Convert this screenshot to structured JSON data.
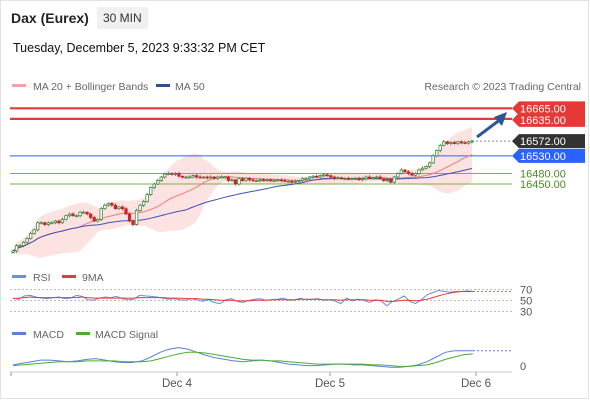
{
  "header": {
    "title": "Dax (Eurex)",
    "timeframe": "30 MIN",
    "timestamp": "Tuesday, December 5, 2023 9:33:32 PM CET"
  },
  "legend": {
    "ma20": "MA 20 + Bollinger Bands",
    "ma50": "MA 50",
    "credit": "Research © 2023 Trading Central",
    "rsi": "RSI",
    "rsi_ma": "9MA",
    "macd": "MACD",
    "macd_signal": "MACD Signal"
  },
  "colors": {
    "up": "#2e7d32",
    "down": "#c62828",
    "resistance": "#e53935",
    "pivot": "#2962ff",
    "support": "#7cb342",
    "ma20": "#f07b7b",
    "ma50": "#3f51b5",
    "band_fill": "#fde2e2",
    "rsi": "#6a8fdc",
    "rsi_ma": "#e53935",
    "macd": "#5b7fe0",
    "macd_signal": "#4caf28",
    "last_price_bg": "#333333",
    "arrow": "#2f5597"
  },
  "chart_data": [
    {
      "type": "candlestick",
      "title": "Dax (Eurex)",
      "interval": "30 MIN",
      "x_ticks": [
        "Dec 4",
        "Dec 5",
        "Dec 6"
      ],
      "ylim": [
        16240,
        16700
      ],
      "levels": [
        {
          "label": "16665.00",
          "value": 16665,
          "kind": "resistance"
        },
        {
          "label": "16635.00",
          "value": 16635,
          "kind": "resistance"
        },
        {
          "label": "16572.00",
          "value": 16572,
          "kind": "last"
        },
        {
          "label": "16530.00",
          "value": 16530,
          "kind": "pivot"
        },
        {
          "label": "16480.00",
          "value": 16480,
          "kind": "support"
        },
        {
          "label": "16450.00",
          "value": 16450,
          "kind": "support"
        }
      ],
      "close": [
        16260,
        16275,
        16275,
        16285,
        16295,
        16310,
        16320,
        16340,
        16340,
        16335,
        16340,
        16340,
        16345,
        16340,
        16350,
        16360,
        16365,
        16360,
        16360,
        16370,
        16370,
        16365,
        16355,
        16345,
        16350,
        16380,
        16390,
        16395,
        16390,
        16380,
        16385,
        16380,
        16365,
        16345,
        16335,
        16375,
        16390,
        16400,
        16420,
        16440,
        16450,
        16460,
        16470,
        16478,
        16480,
        16478,
        16480,
        16472,
        16470,
        16470,
        16470,
        16474,
        16470,
        16468,
        16470,
        16468,
        16470,
        16466,
        16470,
        16470,
        16470,
        16460,
        16462,
        16450,
        16465,
        16460,
        16466,
        16462,
        16460,
        16460,
        16462,
        16460,
        16462,
        16460,
        16460,
        16462,
        16460,
        16458,
        16458,
        16455,
        16458,
        16460,
        16465,
        16465,
        16470,
        16472,
        16470,
        16474,
        16476,
        16474,
        16470,
        16466,
        16468,
        16466,
        16466,
        16464,
        16466,
        16466,
        16462,
        16465,
        16470,
        16466,
        16468,
        16470,
        16465,
        16460,
        16462,
        16455,
        16470,
        16480,
        16490,
        16485,
        16480,
        16475,
        16480,
        16490,
        16495,
        16500,
        16510,
        16530,
        16545,
        16560,
        16570,
        16565,
        16568,
        16565,
        16570,
        16568,
        16566,
        16570,
        16572
      ]
    },
    {
      "type": "line",
      "title": "RSI",
      "y_ticks": [
        70,
        50,
        30
      ],
      "series": [
        {
          "name": "RSI",
          "values": [
            58,
            56,
            62,
            63,
            60,
            58,
            57,
            59,
            60,
            57,
            58,
            63,
            61,
            55,
            54,
            58,
            60,
            59,
            61,
            57,
            55,
            56,
            63,
            62,
            61,
            60,
            58,
            56,
            57,
            55,
            54,
            57,
            55,
            52,
            55,
            50,
            48,
            55,
            57,
            52,
            50,
            54,
            56,
            57,
            54,
            55,
            56,
            58,
            54,
            55,
            58,
            55,
            56,
            57,
            54,
            55,
            53,
            48,
            58,
            53,
            56,
            54,
            50,
            55,
            53,
            44,
            52,
            56,
            62,
            52,
            48,
            55,
            64,
            68,
            72,
            70,
            69,
            70,
            70,
            71,
            70
          ]
        },
        {
          "name": "9MA",
          "values": [
            57,
            58,
            59,
            60,
            59,
            59,
            59,
            59,
            59,
            59,
            59,
            59,
            60,
            59,
            58,
            58,
            58,
            58,
            58,
            58,
            58,
            58,
            59,
            59,
            59,
            59,
            59,
            58,
            58,
            58,
            57,
            57,
            57,
            56,
            56,
            55,
            54,
            54,
            54,
            53,
            53,
            53,
            54,
            54,
            54,
            55,
            55,
            55,
            55,
            55,
            56,
            56,
            56,
            56,
            55,
            55,
            55,
            54,
            55,
            55,
            55,
            55,
            54,
            54,
            54,
            52,
            52,
            53,
            54,
            54,
            53,
            54,
            56,
            59,
            62,
            65,
            67,
            69,
            70,
            70,
            70
          ]
        }
      ]
    },
    {
      "type": "line",
      "title": "MACD",
      "y_ticks": [
        0
      ],
      "series": [
        {
          "name": "MACD",
          "values": [
            4,
            6,
            8,
            10,
            10,
            9,
            8,
            9,
            11,
            12,
            10,
            8,
            7,
            7,
            9,
            14,
            20,
            24,
            26,
            24,
            20,
            16,
            13,
            11,
            9,
            8,
            9,
            10,
            9,
            7,
            5,
            4,
            3,
            3,
            4,
            5,
            5,
            4,
            4,
            3,
            2,
            1,
            1,
            2,
            4,
            8,
            14,
            20,
            22,
            22,
            22
          ]
        },
        {
          "name": "MACD Signal",
          "values": [
            3,
            4,
            5,
            6,
            7,
            8,
            8,
            8,
            9,
            9,
            9,
            9,
            8,
            8,
            8,
            9,
            12,
            15,
            18,
            20,
            20,
            19,
            17,
            15,
            13,
            11,
            10,
            10,
            9,
            9,
            8,
            7,
            6,
            5,
            5,
            5,
            5,
            5,
            5,
            4,
            4,
            3,
            2,
            2,
            3,
            4,
            7,
            11,
            14,
            17,
            18
          ]
        }
      ]
    }
  ]
}
